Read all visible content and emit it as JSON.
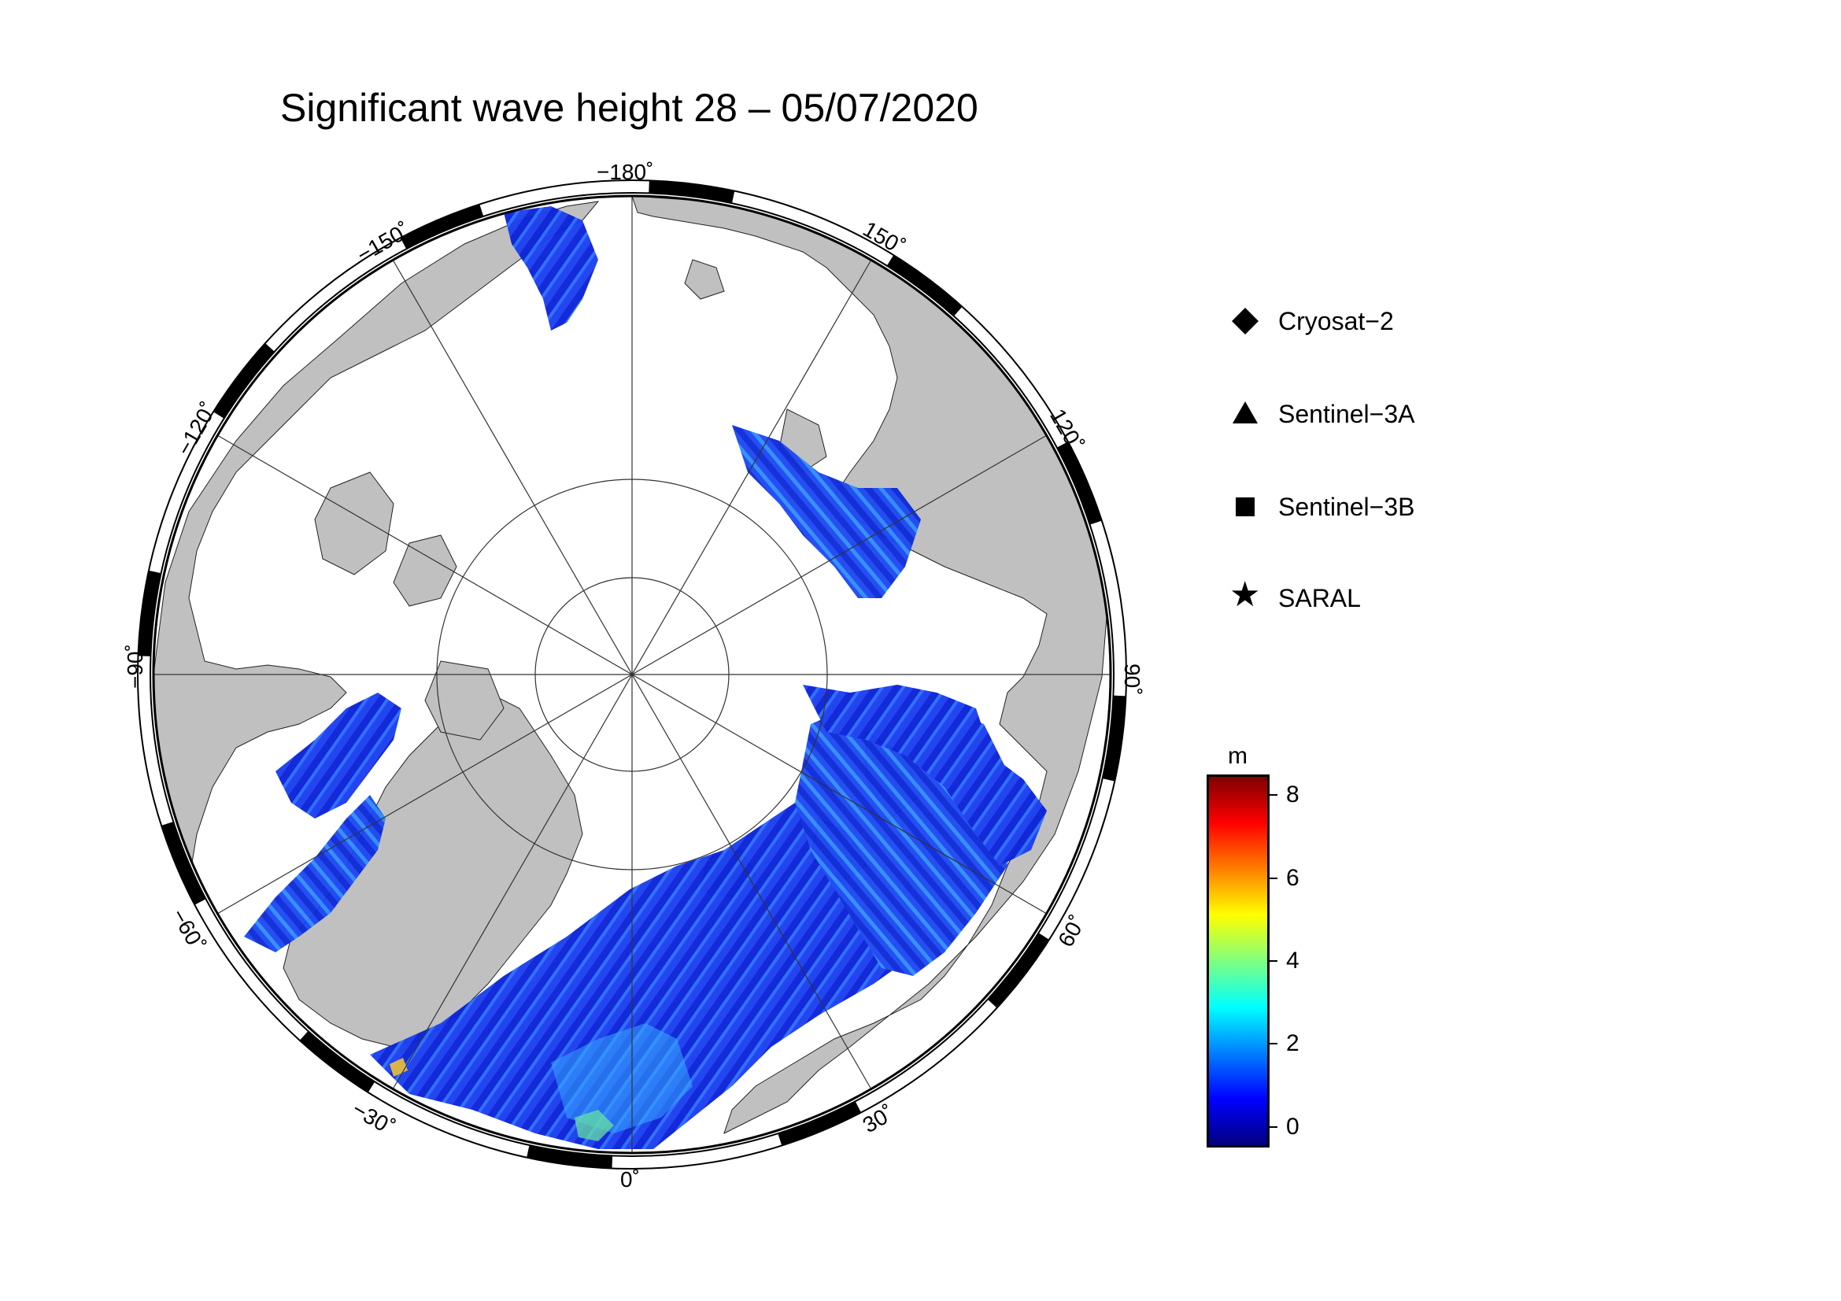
{
  "title": "Significant wave height 28 – 05/07/2020",
  "map": {
    "projection": "north-polar-stereographic",
    "land_color": "#c0c0c0",
    "ice_color": "#ffffff",
    "longitude_labels": [
      {
        "text": "−180˚",
        "lon": 180
      },
      {
        "text": "150˚",
        "lon": 150
      },
      {
        "text": "120˚",
        "lon": 120
      },
      {
        "text": "90˚",
        "lon": 90
      },
      {
        "text": "60˚",
        "lon": 60
      },
      {
        "text": "30˚",
        "lon": 30
      },
      {
        "text": "0˚",
        "lon": 0
      },
      {
        "text": "−30˚",
        "lon": -30
      },
      {
        "text": "−60˚",
        "lon": -60
      },
      {
        "text": "−90˚",
        "lon": -90
      },
      {
        "text": "−120˚",
        "lon": -120
      },
      {
        "text": "−150˚",
        "lon": -150
      }
    ]
  },
  "legend": [
    {
      "label": "Cryosat−2",
      "symbol": "diamond"
    },
    {
      "label": "Sentinel−3A",
      "symbol": "triangle"
    },
    {
      "label": "Sentinel−3B",
      "symbol": "square"
    },
    {
      "label": "SARAL",
      "symbol": "star"
    }
  ],
  "colorbar": {
    "unit": "m",
    "min": -0.5,
    "max": 8.5,
    "ticks": [
      {
        "value": 0,
        "label": "0"
      },
      {
        "value": 2,
        "label": "2"
      },
      {
        "value": 4,
        "label": "4"
      },
      {
        "value": 6,
        "label": "6"
      },
      {
        "value": 8,
        "label": "8"
      }
    ],
    "colors": [
      "#00007f",
      "#0000ff",
      "#007fff",
      "#00ffff",
      "#7fff7f",
      "#ffff00",
      "#ff7f00",
      "#ff0000",
      "#7f0000"
    ]
  },
  "colors": {
    "low_wave": "#1030e0",
    "mid_wave": "#20a0ff",
    "high_wave": "#60e0a0"
  }
}
